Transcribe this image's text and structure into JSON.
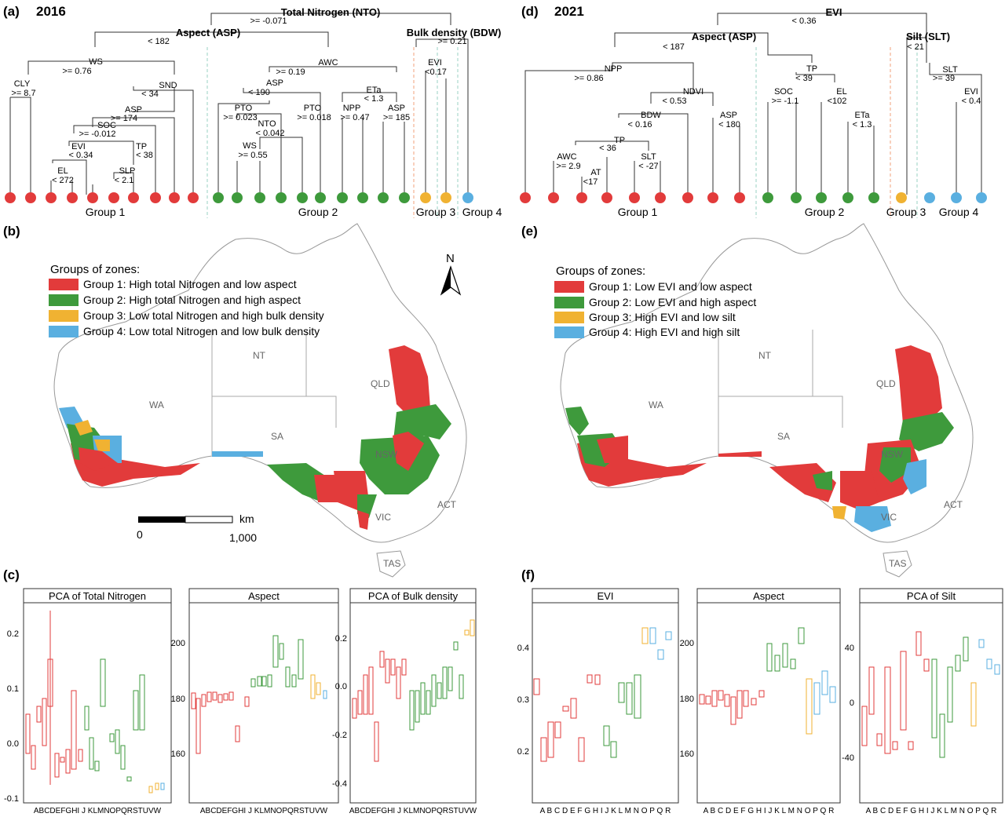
{
  "colors": {
    "group1": "#e23b3b",
    "group2": "#3e9a3c",
    "group3": "#f0b232",
    "group4": "#5aafe0",
    "land": "#ffffff",
    "border": "#888888"
  },
  "panels": {
    "a": {
      "label": "(a)",
      "year": "2016"
    },
    "b": {
      "label": "(b)"
    },
    "c": {
      "label": "(c)"
    },
    "d": {
      "label": "(d)",
      "year": "2021"
    },
    "e": {
      "label": "(e)"
    },
    "f": {
      "label": "(f)"
    }
  },
  "tree2016": {
    "root": "Total Nitrogen (NTO)",
    "root_split": ">= -0.071",
    "left": "Aspect (ASP)",
    "left_split": "< 182",
    "right": "Bulk density (BDW)",
    "right_split": ">= 0.21",
    "splits": [
      "WS",
      ">= 0.76",
      "CLY",
      ">= 8.7",
      "SND",
      "< 34",
      "ASP",
      ">= 174",
      "SOC",
      ">= -0.012",
      "EVI",
      "< 0.34",
      "EL",
      "< 272",
      "TP",
      "< 38",
      "SLP",
      "< 2.1",
      "AWC",
      ">= 0.19",
      "ASP",
      "< 190",
      "PTO",
      ">= 0.023",
      "NTO",
      "< 0.042",
      "WS",
      ">= 0.55",
      "PTO",
      ">= 0.018",
      "ETa",
      "< 1.3",
      "NPP",
      ">= 0.47",
      "ASP",
      ">= 185",
      "EVI",
      "<0.17"
    ],
    "groups": [
      "Group 1",
      "Group 2",
      "Group 3",
      "Group 4"
    ]
  },
  "tree2021": {
    "root": "EVI",
    "root_split": "< 0.36",
    "left": "Aspect (ASP)",
    "left_split": "< 187",
    "right": "Silt (SLT)",
    "right_split": "< 21",
    "splits": [
      "NPP",
      ">= 0.86",
      "NDVI",
      "< 0.53",
      "BDW",
      "< 0.16",
      "TP",
      "< 36",
      "AWC",
      ">= 2.9",
      "AT",
      "<17",
      "SLT",
      "< -27",
      "ASP",
      "< 180",
      "TP",
      "< 39",
      "SOC",
      ">= -1.1",
      "EL",
      "<102",
      "ETa",
      "< 1.3",
      "SLT",
      ">= 39",
      "EVI",
      "< 0.4"
    ],
    "groups": [
      "Group 1",
      "Group 2",
      "Group 3",
      "Group 4"
    ]
  },
  "map2016": {
    "legend_title": "Groups of zones:",
    "legend": [
      "Group 1: High total Nitrogen and low aspect",
      "Group 2: High total Nitrogen and high aspect",
      "Group 3: Low total Nitrogen and high bulk density",
      "Group 4: Low total Nitrogen and low bulk density"
    ],
    "states": [
      "WA",
      "NT",
      "SA",
      "QLD",
      "NSW",
      "ACT",
      "VIC",
      "TAS"
    ],
    "north": "N",
    "scale": {
      "unit": "km",
      "start": "0",
      "end": "1,000"
    }
  },
  "map2021": {
    "legend_title": "Groups of zones:",
    "legend": [
      "Group 1: Low EVI and low aspect",
      "Group 2: Low EVI and high aspect",
      "Group 3: High EVI and low silt",
      "Group 4: High EVI and high silt"
    ],
    "states": [
      "WA",
      "NT",
      "SA",
      "QLD",
      "NSW",
      "ACT",
      "VIC",
      "TAS"
    ]
  },
  "box2016": {
    "facets": [
      {
        "title": "PCA of Total Nitrogen",
        "ticks": [
          "0.2",
          "0.1",
          "0.0",
          "-0.1"
        ]
      },
      {
        "title": "Aspect",
        "ticks": [
          "200",
          "180",
          "160"
        ]
      },
      {
        "title": "PCA of Bulk density",
        "ticks": [
          "0.2",
          "0.0",
          "-0.2",
          "-0.4"
        ]
      }
    ],
    "categories": "ABCDEFGHI J KLMNOPQRSTUVW"
  },
  "box2021": {
    "facets": [
      {
        "title": "EVI",
        "ticks": [
          "0.4",
          "0.3",
          "0.2"
        ]
      },
      {
        "title": "Aspect",
        "ticks": [
          "200",
          "180",
          "160"
        ]
      },
      {
        "title": "PCA of Silt",
        "ticks": [
          "40",
          "0",
          "-40"
        ]
      }
    ],
    "categories": "A B C D E F G H I J K L M N O P Q R"
  }
}
